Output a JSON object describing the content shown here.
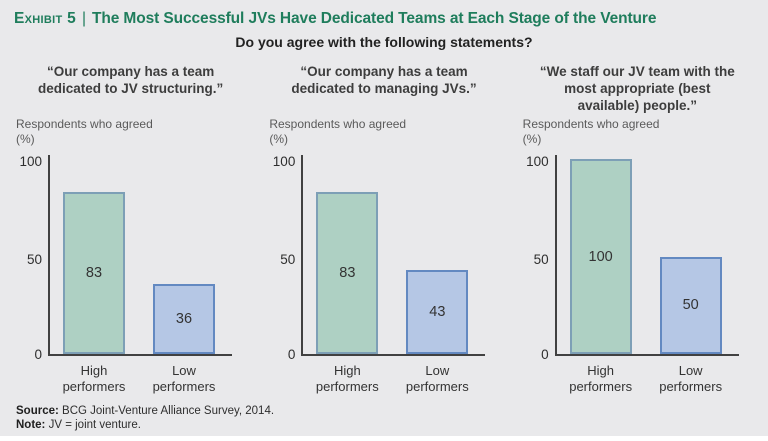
{
  "header": {
    "exhibit_label": "Exhibit 5",
    "separator": "|",
    "title": "The Most Successful JVs Have Dedicated Teams at Each Stage of the Venture",
    "subtitle": "Do you agree with the following statements?"
  },
  "axis_caption": {
    "line1": "Respondents who agreed",
    "line2": "(%)"
  },
  "ticks_display": [
    "100",
    "50",
    "0"
  ],
  "chart_data": [
    {
      "type": "bar",
      "title": "“Our company has a team dedicated to JV structuring.”",
      "categories": [
        "High performers",
        "Low performers"
      ],
      "values": [
        83,
        36
      ],
      "ylabel": "Respondents who agreed (%)",
      "yticks": [
        0,
        50,
        100
      ],
      "ylim": [
        0,
        100
      ],
      "grid": false,
      "bar_colors": [
        "#aed0c3",
        "#b5c7e5"
      ]
    },
    {
      "type": "bar",
      "title": "“Our company has a team dedicated to managing JVs.”",
      "categories": [
        "High performers",
        "Low performers"
      ],
      "values": [
        83,
        43
      ],
      "ylabel": "Respondents who agreed (%)",
      "yticks": [
        0,
        50,
        100
      ],
      "ylim": [
        0,
        100
      ],
      "grid": false,
      "bar_colors": [
        "#aed0c3",
        "#b5c7e5"
      ]
    },
    {
      "type": "bar",
      "title": "“We staff our JV team with the most appropriate (best available) people.”",
      "categories": [
        "High performers",
        "Low performers"
      ],
      "values": [
        100,
        50
      ],
      "ylabel": "Respondents who agreed (%)",
      "yticks": [
        0,
        50,
        100
      ],
      "ylim": [
        0,
        100
      ],
      "grid": false,
      "bar_colors": [
        "#aed0c3",
        "#b5c7e5"
      ]
    }
  ],
  "footer": {
    "source_label": "Source:",
    "source_text": " BCG Joint-Venture Alliance Survey, 2014.",
    "note_label": "Note:",
    "note_text": " JV = joint venture."
  },
  "colors": {
    "background": "#e9e9eb",
    "title_green": "#1f7d5c",
    "bar_green_fill": "#aed0c3",
    "bar_green_border": "#7d9fb6",
    "bar_blue_fill": "#b5c7e5",
    "bar_blue_border": "#6389c1",
    "axis": "#414141"
  }
}
